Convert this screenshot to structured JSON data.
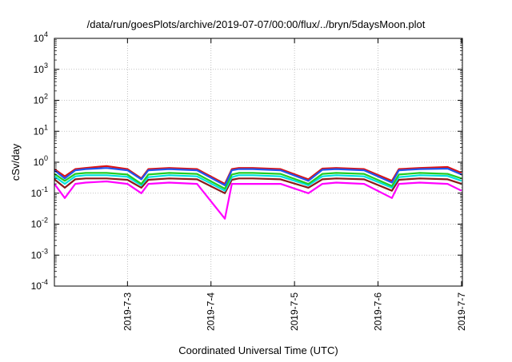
{
  "chart_data": {
    "type": "line",
    "title": "/data/run/goesPlots/archive/2019-07-07/00:00/flux/../bryn/5daysMoon.plot",
    "xlabel": "Coordinated Universal Time (UTC)",
    "ylabel": "cSv/day",
    "yscale": "log",
    "ylim": [
      0.0001,
      10000
    ],
    "y_ticks": [
      {
        "base": "10",
        "exp": "-4",
        "value": 0.0001
      },
      {
        "base": "10",
        "exp": "-3",
        "value": 0.001
      },
      {
        "base": "10",
        "exp": "-2",
        "value": 0.01
      },
      {
        "base": "10",
        "exp": "-1",
        "value": 0.1
      },
      {
        "base": "10",
        "exp": "0",
        "value": 1
      },
      {
        "base": "10",
        "exp": "1",
        "value": 10
      },
      {
        "base": "10",
        "exp": "2",
        "value": 100
      },
      {
        "base": "10",
        "exp": "3",
        "value": 1000
      },
      {
        "base": "10",
        "exp": "4",
        "value": 10000
      }
    ],
    "xlim": [
      "2019-07-02T03:00",
      "2019-07-07T00:15"
    ],
    "x_ticks": [
      "2019-7-3",
      "2019-7-4",
      "2019-7-5",
      "2019-7-6",
      "2019-7-7"
    ],
    "grid": true,
    "legend": "none",
    "series": [
      {
        "color": "#ff00ff",
        "x": [
          "2019-07-02T03:00",
          "2019-07-02T06:00",
          "2019-07-02T09:00",
          "2019-07-02T12:00",
          "2019-07-02T18:00",
          "2019-07-03T00:00",
          "2019-07-03T04:00",
          "2019-07-03T06:00",
          "2019-07-03T12:00",
          "2019-07-03T20:00",
          "2019-07-04T04:00",
          "2019-07-04T06:00",
          "2019-07-04T08:00",
          "2019-07-04T12:00",
          "2019-07-04T20:00",
          "2019-07-05T04:00",
          "2019-07-05T08:00",
          "2019-07-05T12:00",
          "2019-07-05T20:00",
          "2019-07-06T04:00",
          "2019-07-06T06:00",
          "2019-07-06T12:00",
          "2019-07-06T20:00",
          "2019-07-07T00:00"
        ],
        "y": [
          0.2,
          0.07,
          0.2,
          0.22,
          0.24,
          0.2,
          0.1,
          0.2,
          0.22,
          0.2,
          0.015,
          0.2,
          0.2,
          0.2,
          0.2,
          0.1,
          0.2,
          0.22,
          0.2,
          0.07,
          0.2,
          0.22,
          0.2,
          0.12
        ]
      },
      {
        "color": "#8b1a1a",
        "x": [
          "2019-07-02T03:00",
          "2019-07-02T06:00",
          "2019-07-02T09:00",
          "2019-07-02T12:00",
          "2019-07-02T18:00",
          "2019-07-03T00:00",
          "2019-07-03T04:00",
          "2019-07-03T06:00",
          "2019-07-03T12:00",
          "2019-07-03T20:00",
          "2019-07-04T04:00",
          "2019-07-04T06:00",
          "2019-07-04T08:00",
          "2019-07-04T12:00",
          "2019-07-04T20:00",
          "2019-07-05T04:00",
          "2019-07-05T08:00",
          "2019-07-05T12:00",
          "2019-07-05T20:00",
          "2019-07-06T04:00",
          "2019-07-06T06:00",
          "2019-07-06T12:00",
          "2019-07-06T20:00",
          "2019-07-07T00:00"
        ],
        "y": [
          0.28,
          0.15,
          0.28,
          0.3,
          0.3,
          0.27,
          0.15,
          0.27,
          0.3,
          0.28,
          0.1,
          0.27,
          0.3,
          0.3,
          0.28,
          0.15,
          0.28,
          0.3,
          0.28,
          0.12,
          0.27,
          0.3,
          0.28,
          0.2
        ]
      },
      {
        "color": "#00e0e0",
        "x": [
          "2019-07-02T03:00",
          "2019-07-02T06:00",
          "2019-07-02T09:00",
          "2019-07-02T12:00",
          "2019-07-02T18:00",
          "2019-07-03T00:00",
          "2019-07-03T04:00",
          "2019-07-03T06:00",
          "2019-07-03T12:00",
          "2019-07-03T20:00",
          "2019-07-04T04:00",
          "2019-07-04T06:00",
          "2019-07-04T08:00",
          "2019-07-04T12:00",
          "2019-07-04T20:00",
          "2019-07-05T04:00",
          "2019-07-05T08:00",
          "2019-07-05T12:00",
          "2019-07-05T20:00",
          "2019-07-06T04:00",
          "2019-07-06T06:00",
          "2019-07-06T12:00",
          "2019-07-06T20:00",
          "2019-07-07T00:00"
        ],
        "y": [
          0.35,
          0.2,
          0.35,
          0.38,
          0.38,
          0.34,
          0.18,
          0.33,
          0.38,
          0.35,
          0.12,
          0.33,
          0.38,
          0.38,
          0.35,
          0.18,
          0.35,
          0.38,
          0.35,
          0.15,
          0.33,
          0.38,
          0.36,
          0.25
        ]
      },
      {
        "color": "#22cc22",
        "x": [
          "2019-07-02T03:00",
          "2019-07-02T06:00",
          "2019-07-02T09:00",
          "2019-07-02T12:00",
          "2019-07-02T18:00",
          "2019-07-03T00:00",
          "2019-07-03T04:00",
          "2019-07-03T06:00",
          "2019-07-03T12:00",
          "2019-07-03T20:00",
          "2019-07-04T04:00",
          "2019-07-04T06:00",
          "2019-07-04T08:00",
          "2019-07-04T12:00",
          "2019-07-04T20:00",
          "2019-07-05T04:00",
          "2019-07-05T08:00",
          "2019-07-05T12:00",
          "2019-07-05T20:00",
          "2019-07-06T04:00",
          "2019-07-06T06:00",
          "2019-07-06T12:00",
          "2019-07-06T20:00",
          "2019-07-07T00:00"
        ],
        "y": [
          0.42,
          0.25,
          0.42,
          0.45,
          0.45,
          0.4,
          0.2,
          0.4,
          0.45,
          0.42,
          0.14,
          0.4,
          0.45,
          0.45,
          0.42,
          0.2,
          0.42,
          0.45,
          0.42,
          0.17,
          0.4,
          0.45,
          0.42,
          0.3
        ]
      },
      {
        "color": "#dd1111",
        "x": [
          "2019-07-02T03:00",
          "2019-07-02T06:00",
          "2019-07-02T09:00",
          "2019-07-02T12:00",
          "2019-07-02T18:00",
          "2019-07-03T00:00",
          "2019-07-03T04:00",
          "2019-07-03T06:00",
          "2019-07-03T12:00",
          "2019-07-03T20:00",
          "2019-07-04T04:00",
          "2019-07-04T06:00",
          "2019-07-04T08:00",
          "2019-07-04T12:00",
          "2019-07-04T20:00",
          "2019-07-05T04:00",
          "2019-07-05T08:00",
          "2019-07-05T12:00",
          "2019-07-05T20:00",
          "2019-07-06T04:00",
          "2019-07-06T06:00",
          "2019-07-06T12:00",
          "2019-07-06T20:00",
          "2019-07-07T00:00"
        ],
        "y": [
          0.6,
          0.35,
          0.6,
          0.65,
          0.75,
          0.6,
          0.3,
          0.6,
          0.65,
          0.6,
          0.2,
          0.6,
          0.65,
          0.65,
          0.6,
          0.28,
          0.62,
          0.65,
          0.6,
          0.25,
          0.6,
          0.65,
          0.7,
          0.45
        ]
      },
      {
        "color": "#2255ee",
        "x": [
          "2019-07-02T03:00",
          "2019-07-02T06:00",
          "2019-07-02T09:00",
          "2019-07-02T12:00",
          "2019-07-02T18:00",
          "2019-07-03T00:00",
          "2019-07-03T04:00",
          "2019-07-03T06:00",
          "2019-07-03T12:00",
          "2019-07-03T20:00",
          "2019-07-04T04:00",
          "2019-07-04T06:00",
          "2019-07-04T08:00",
          "2019-07-04T12:00",
          "2019-07-04T20:00",
          "2019-07-05T04:00",
          "2019-07-05T08:00",
          "2019-07-05T12:00",
          "2019-07-05T20:00",
          "2019-07-06T04:00",
          "2019-07-06T06:00",
          "2019-07-06T12:00",
          "2019-07-06T20:00",
          "2019-07-07T00:00"
        ],
        "y": [
          0.55,
          0.3,
          0.55,
          0.6,
          0.65,
          0.55,
          0.28,
          0.55,
          0.6,
          0.55,
          0.18,
          0.55,
          0.6,
          0.6,
          0.55,
          0.25,
          0.57,
          0.6,
          0.55,
          0.22,
          0.55,
          0.6,
          0.62,
          0.4
        ]
      }
    ]
  }
}
